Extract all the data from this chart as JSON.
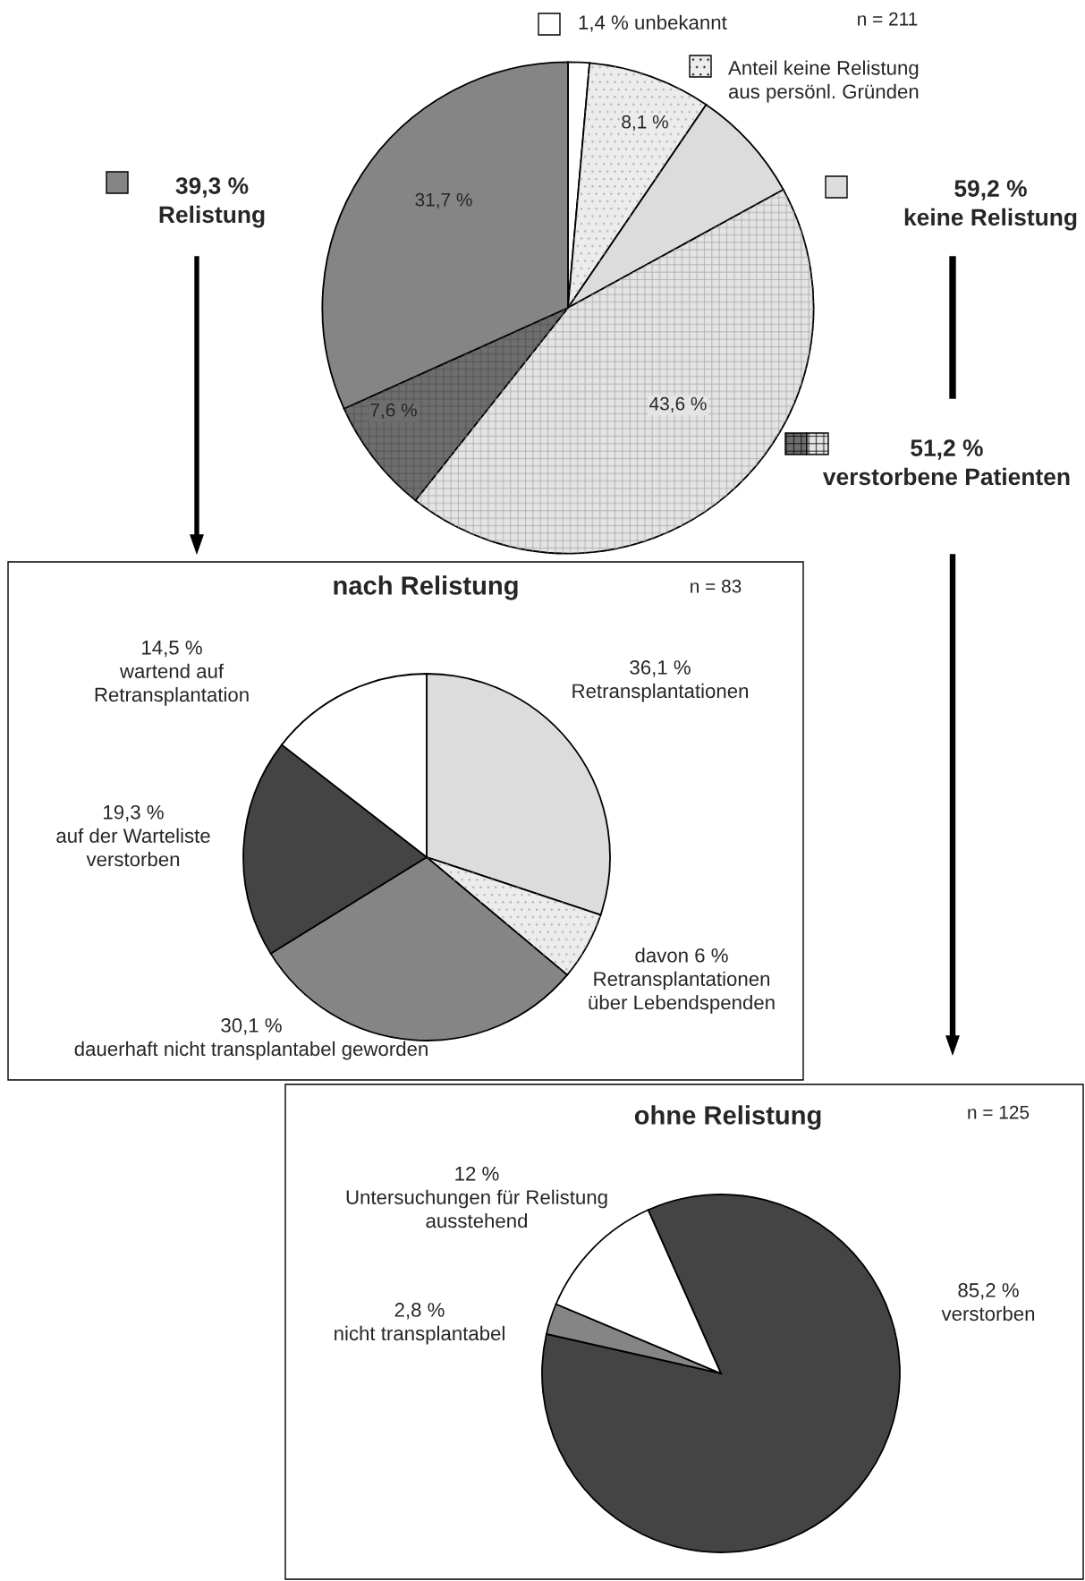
{
  "chart_data": [
    {
      "type": "pie",
      "categories": [
        "1,4 % unbekannt",
        "Anteil keine Relistung\naus persönl. Gründen",
        null,
        null,
        null,
        null
      ],
      "values": [
        1.4,
        8.1,
        7.5,
        43.6,
        7.6,
        31.7
      ],
      "colors": [
        "#ffffff",
        "#ececec",
        "#dcdcdc",
        "#e4e4e4",
        "#6e6e6e",
        "#858585"
      ],
      "value_labels": [
        null,
        "8,1 %",
        null,
        "43,6 %",
        "7,6 %",
        "31,7 %"
      ],
      "annotations": [
        "n = 211",
        "39,3 %\nRelistung",
        "59,2 %\nkeine Relistung",
        "51,2 %\nverstorbene Patienten"
      ]
    },
    {
      "type": "pie",
      "title": "nach Relistung",
      "categories": [
        "36,1 %\nRetransplantationen",
        "davon 6 %\nRetransplantationen\nüber Lebendspenden",
        "30,1 %\ndauerhaft nicht transplantabel geworden",
        "19,3 %\nauf der Warteliste\nverstorben",
        "14,5 %\nwartend auf\nRetransplantation"
      ],
      "values": [
        30.1,
        6,
        30.1,
        19.3,
        14.5
      ],
      "colors": [
        "#dcdcdc",
        "#ececec",
        "#858585",
        "#444444",
        "#ffffff"
      ],
      "annotations": [
        "n = 83"
      ]
    },
    {
      "type": "pie",
      "title": "ohne Relistung",
      "categories": [
        "85,2 %\nverstorben",
        "2,8 %\nnicht transplantabel",
        "12 %\nUntersuchungen für Relistung\nausstehend"
      ],
      "values": [
        85.2,
        2.8,
        12
      ],
      "colors": [
        "#444444",
        "#858585",
        "#ffffff"
      ],
      "annotations": [
        "n = 125"
      ]
    }
  ]
}
